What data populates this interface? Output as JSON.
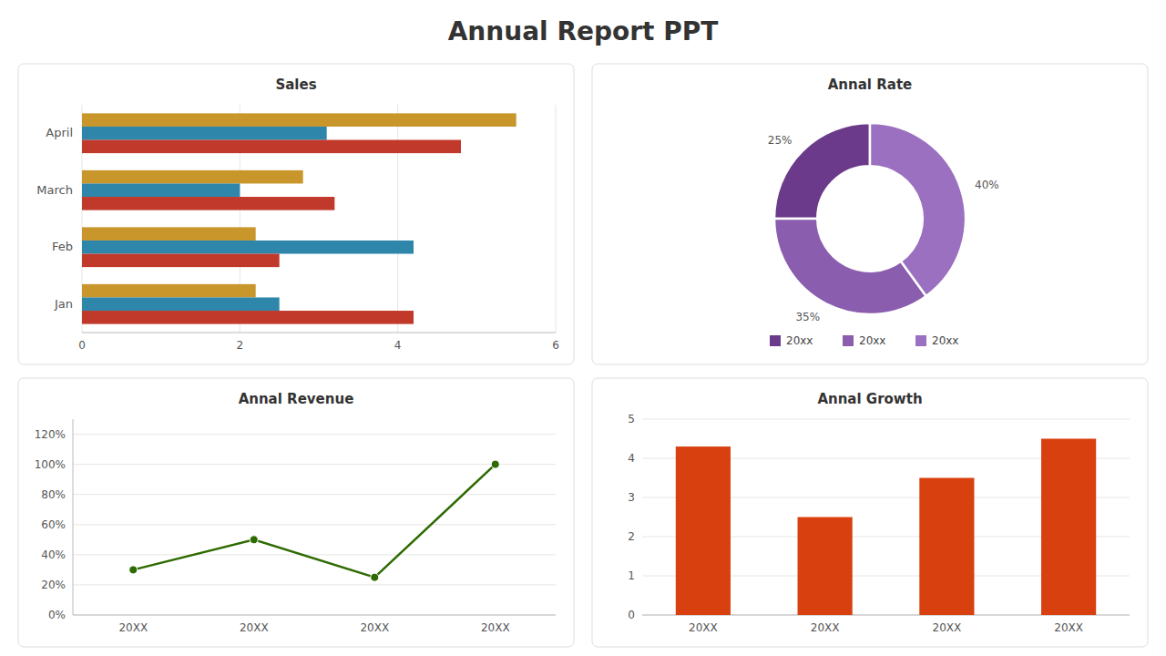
{
  "title": "Annual Report PPT",
  "chart_data": [
    {
      "type": "bar",
      "title": "Sales",
      "orientation": "horizontal",
      "categories": [
        "Jan",
        "Feb",
        "March",
        "April"
      ],
      "series": [
        {
          "color": "#C8962A",
          "values": [
            2.2,
            2.2,
            2.8,
            5.5
          ]
        },
        {
          "color": "#2E86AB",
          "values": [
            2.5,
            4.2,
            2.0,
            3.1
          ]
        },
        {
          "color": "#C0392B",
          "values": [
            4.2,
            2.5,
            3.2,
            4.8
          ]
        }
      ],
      "xlim": [
        0,
        6
      ],
      "xticks": [
        0,
        2,
        4,
        6
      ],
      "grid": true
    },
    {
      "type": "donut",
      "title": "Annal Rate",
      "categories": [
        "20xx",
        "20xx",
        "20xx"
      ],
      "values": [
        25,
        35,
        40
      ],
      "value_labels": [
        "25%",
        "35%",
        "40%"
      ],
      "colors": [
        "#6B3A8A",
        "#8B5DAE",
        "#9B70C0"
      ],
      "data_labels": true,
      "legend": "bottom"
    },
    {
      "type": "line",
      "title": "Annal Revenue",
      "categories": [
        "20XX",
        "20XX",
        "20XX",
        "20XX"
      ],
      "values": [
        30,
        50,
        25,
        100
      ],
      "color": "#2D6A00",
      "marker": "circle",
      "ylim": [
        0,
        130
      ],
      "yticks": [
        {
          "value": 0,
          "label": "0%"
        },
        {
          "value": 20,
          "label": "20%"
        },
        {
          "value": 40,
          "label": "40%"
        },
        {
          "value": 60,
          "label": "60%"
        },
        {
          "value": 80,
          "label": "80%"
        },
        {
          "value": 100,
          "label": "100%"
        },
        {
          "value": 120,
          "label": "120%"
        }
      ],
      "grid": true
    },
    {
      "type": "bar",
      "title": "Annal Growth",
      "categories": [
        "20XX",
        "20XX",
        "20XX",
        "20XX"
      ],
      "values": [
        4.3,
        2.5,
        3.5,
        4.5
      ],
      "color": "#D94010",
      "ylim": [
        0,
        5
      ],
      "yticks": [
        0,
        1,
        2,
        3,
        4,
        5
      ],
      "grid": true
    }
  ]
}
